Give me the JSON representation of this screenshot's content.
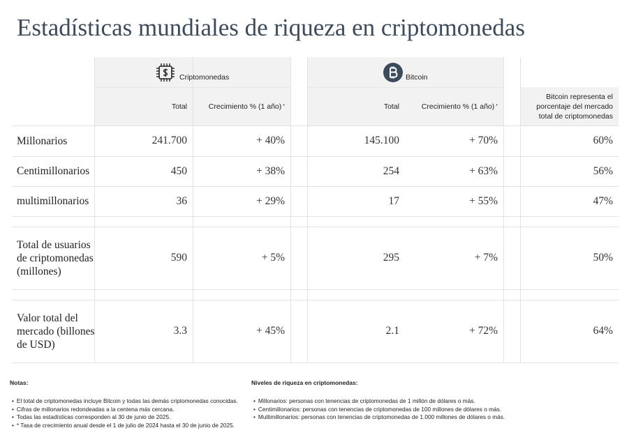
{
  "title": "Estadísticas mundiales de riqueza en criptomonedas",
  "groups": [
    {
      "label": "Criptomonedas"
    },
    {
      "label": "Bitcoin"
    }
  ],
  "columns": [
    {
      "label": "Total"
    },
    {
      "label": "Crecimiento % (1 año)",
      "mark": "*"
    },
    {
      "label": "Total"
    },
    {
      "label": "Crecimiento % (1 año)",
      "mark": "*"
    },
    {
      "label": "Bitcoin representa el porcentaje del mercado total de criptomonedas"
    }
  ],
  "rows": [
    {
      "label": "Millonarios",
      "cells": [
        "241.700",
        "+ 40%",
        "145.100",
        "+ 70%",
        "60%"
      ]
    },
    {
      "label": "Centimillonarios",
      "cells": [
        "450",
        "+ 38%",
        "254",
        "+ 63%",
        "56%"
      ]
    },
    {
      "label": "multimillonarios",
      "cells": [
        "36",
        "+ 29%",
        "17",
        "+ 55%",
        "47%"
      ]
    },
    {
      "label": "Total de usuarios de criptomonedas (millones)",
      "cells": [
        "590",
        "+ 5%",
        "295",
        "+ 7%",
        "50%"
      ]
    },
    {
      "label": "Valor total del mercado (billones de USD)",
      "cells": [
        "3.3",
        "+ 45%",
        "2.1",
        "+ 72%",
        "64%"
      ]
    }
  ],
  "notes": {
    "title": "Notas:",
    "items": [
      "El total de criptomonedas incluye Bitcoin y todas las demás criptomonedas conocidas.",
      "Cifras de millonarios redondeadas a la centena más cercana.",
      "Todas las estadísticas corresponden al 30 de junio de 2025.",
      "* Tasa de crecimiento anual desde el 1 de julio de 2024 hasta el 30 de junio de 2025."
    ]
  },
  "levels": {
    "title": "Niveles de riqueza en criptomonedas:",
    "items": [
      "Millonarios: personas con tenencias de criptomonedas de 1 millón de dólares o más.",
      "Centimillonarios: personas con tenencias de criptomonedas de 100 millones de dólares o más.",
      "Multimillonarios: personas con tenencias de criptomonedas de 1.000 millones de dólares o más."
    ]
  }
}
